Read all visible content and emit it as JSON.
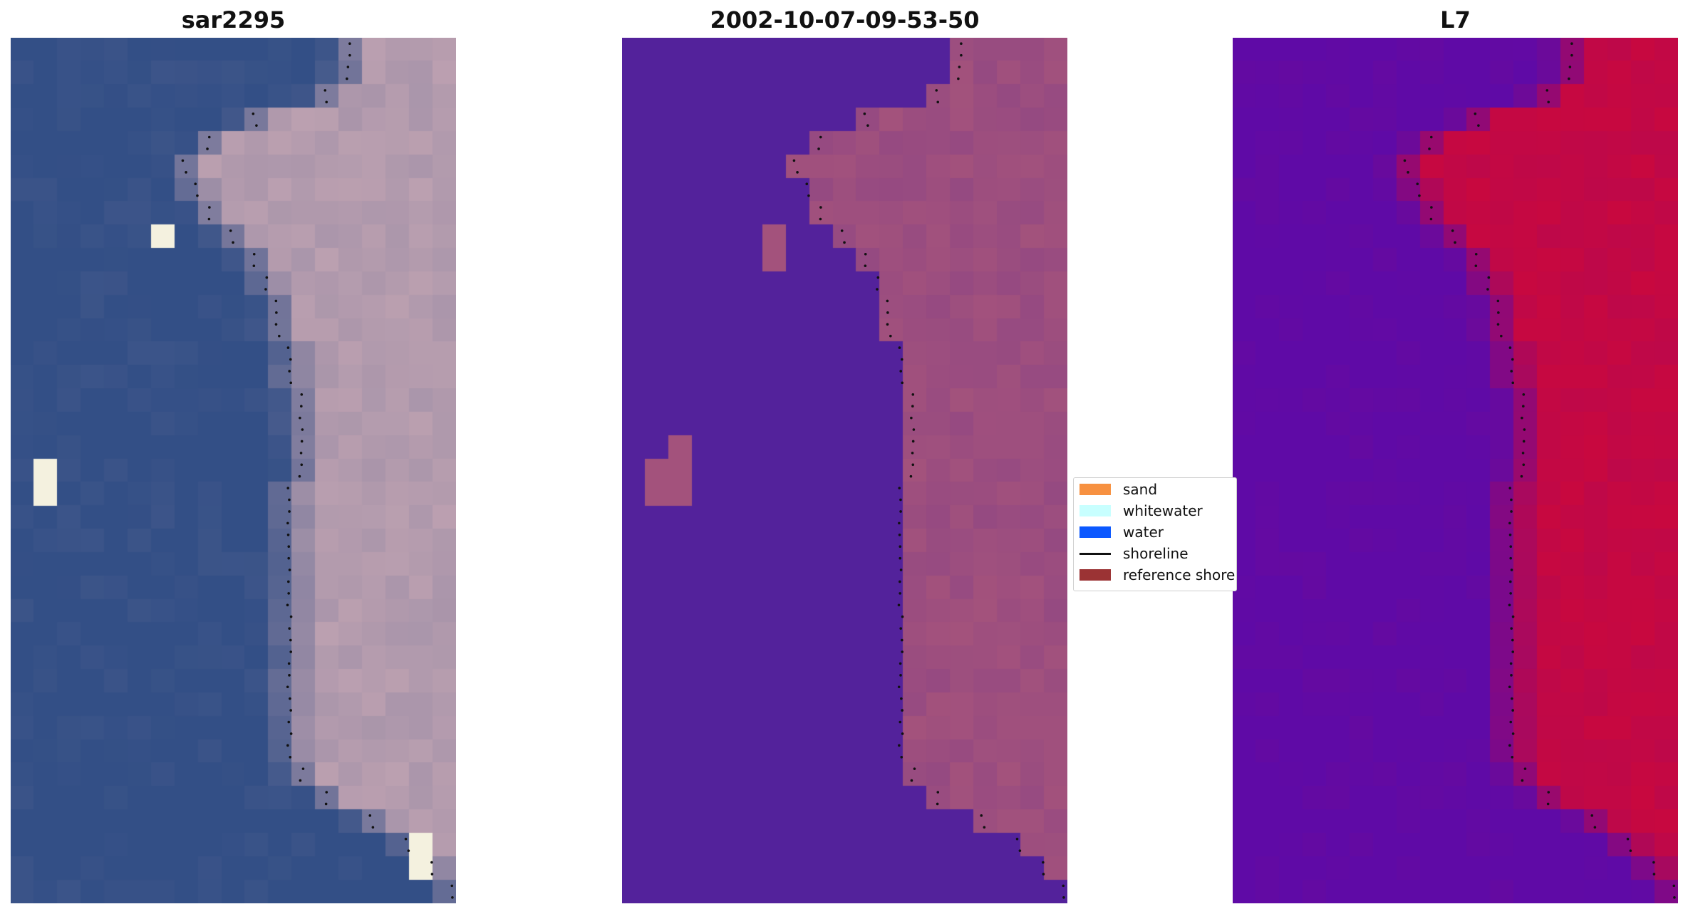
{
  "panels": [
    {
      "title": "sar2295",
      "colormap": "rgb-natural"
    },
    {
      "title": "2002-10-07-09-53-50",
      "colormap": "classification"
    },
    {
      "title": "L7",
      "colormap": "plasma"
    }
  ],
  "legend": {
    "items": [
      {
        "label": "sand",
        "color": "#f79141",
        "kind": "patch"
      },
      {
        "label": "whitewater",
        "color": "#c8ffff",
        "kind": "patch"
      },
      {
        "label": "water",
        "color": "#0b58ff",
        "kind": "patch"
      },
      {
        "label": "shoreline",
        "color": "#111111",
        "kind": "line"
      },
      {
        "label": "reference shoreline",
        "color": "#9b3334",
        "kind": "patch"
      }
    ]
  },
  "colors": {
    "classification_water": "#53229b",
    "classification_land": "#a3527c",
    "plasma_low": "#5f0aa6",
    "plasma_high": "#c8083f",
    "rgb_water": "#334f86",
    "rgb_sand": "#c9a8b4"
  }
}
